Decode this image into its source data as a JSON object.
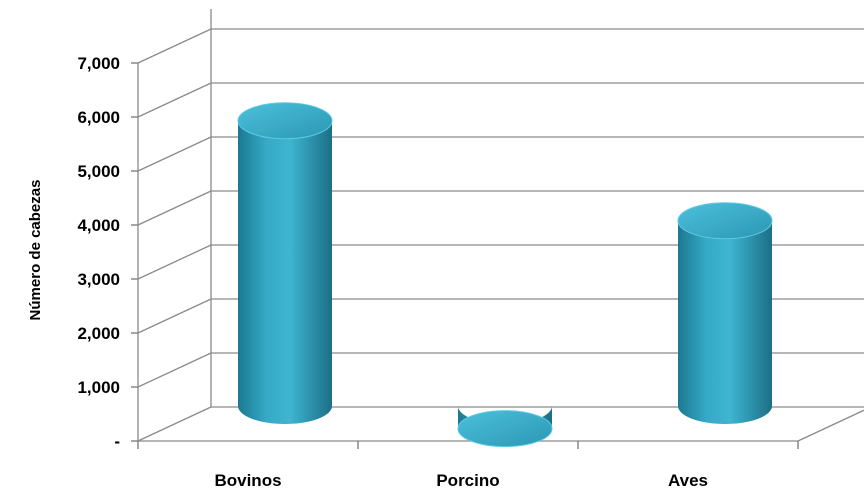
{
  "chart_data": {
    "type": "bar",
    "style": "3d-cylinder",
    "categories": [
      "Bovinos",
      "Porcino",
      "Aves"
    ],
    "values": [
      6300,
      600,
      4450
    ],
    "title": "",
    "xlabel": "",
    "ylabel": "Número de cabezas",
    "ylim": [
      0,
      7000
    ],
    "ytick_labels": [
      "-",
      "1,000",
      "2,000",
      "3,000",
      "4,000",
      "5,000",
      "6,000",
      "7,000"
    ],
    "grid": true,
    "legend": "none",
    "bar_color": "#2f9fbd"
  }
}
